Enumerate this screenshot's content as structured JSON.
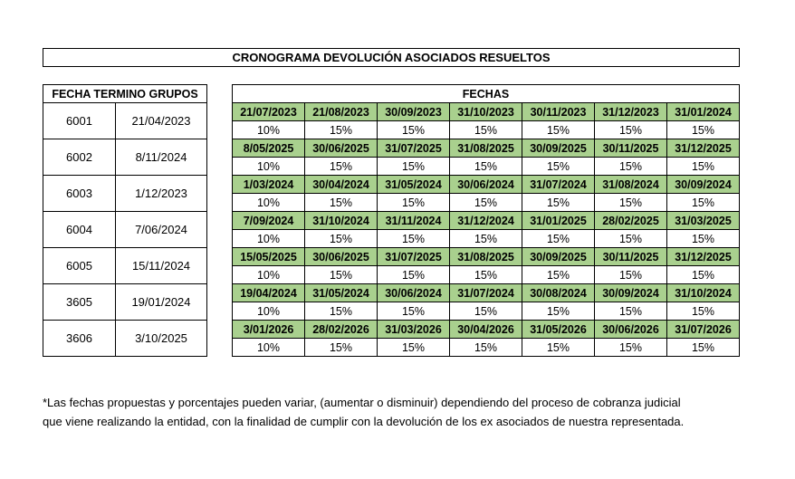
{
  "title": "CRONOGRAMA DEVOLUCIÓN ASOCIADOS RESUELTOS",
  "groups_header": "FECHA TERMINO GRUPOS",
  "fechas_header": "FECHAS",
  "groups": [
    {
      "id": "6001",
      "end_date": "21/04/2023"
    },
    {
      "id": "6002",
      "end_date": "8/11/2024"
    },
    {
      "id": "6003",
      "end_date": "1/12/2023"
    },
    {
      "id": "6004",
      "end_date": "7/06/2024"
    },
    {
      "id": "6005",
      "end_date": "15/11/2024"
    },
    {
      "id": "3605",
      "end_date": "19/01/2024"
    },
    {
      "id": "3606",
      "end_date": "3/10/2025"
    }
  ],
  "schedule": [
    {
      "dates": [
        "21/07/2023",
        "21/08/2023",
        "30/09/2023",
        "31/10/2023",
        "30/11/2023",
        "31/12/2023",
        "31/01/2024"
      ],
      "percents": [
        "10%",
        "15%",
        "15%",
        "15%",
        "15%",
        "15%",
        "15%"
      ]
    },
    {
      "dates": [
        "8/05/2025",
        "30/06/2025",
        "31/07/2025",
        "31/08/2025",
        "30/09/2025",
        "30/11/2025",
        "31/12/2025"
      ],
      "percents": [
        "10%",
        "15%",
        "15%",
        "15%",
        "15%",
        "15%",
        "15%"
      ]
    },
    {
      "dates": [
        "1/03/2024",
        "30/04/2024",
        "31/05/2024",
        "30/06/2024",
        "31/07/2024",
        "31/08/2024",
        "30/09/2024"
      ],
      "percents": [
        "10%",
        "15%",
        "15%",
        "15%",
        "15%",
        "15%",
        "15%"
      ]
    },
    {
      "dates": [
        "7/09/2024",
        "31/10/2024",
        "31/11/2024",
        "31/12/2024",
        "31/01/2025",
        "28/02/2025",
        "31/03/2025"
      ],
      "percents": [
        "10%",
        "15%",
        "15%",
        "15%",
        "15%",
        "15%",
        "15%"
      ]
    },
    {
      "dates": [
        "15/05/2025",
        "30/06/2025",
        "31/07/2025",
        "31/08/2025",
        "30/09/2025",
        "30/11/2025",
        "31/12/2025"
      ],
      "percents": [
        "10%",
        "15%",
        "15%",
        "15%",
        "15%",
        "15%",
        "15%"
      ]
    },
    {
      "dates": [
        "19/04/2024",
        "31/05/2024",
        "30/06/2024",
        "31/07/2024",
        "30/08/2024",
        "30/09/2024",
        "31/10/2024"
      ],
      "percents": [
        "10%",
        "15%",
        "15%",
        "15%",
        "15%",
        "15%",
        "15%"
      ]
    },
    {
      "dates": [
        "3/01/2026",
        "28/02/2026",
        "31/03/2026",
        "30/04/2026",
        "31/05/2026",
        "30/06/2026",
        "31/07/2026"
      ],
      "percents": [
        "10%",
        "15%",
        "15%",
        "15%",
        "15%",
        "15%",
        "15%"
      ]
    }
  ],
  "note_line1": "*Las fechas propuestas y porcentajes  pueden variar, (aumentar o disminuir)  dependiendo del proceso de cobranza judicial",
  "note_line2": "que viene realizando la entidad, con la finalidad  de cumplir con la devolución de los ex asociados de nuestra representada.",
  "colors": {
    "date_cell_bg": "#a9d08e"
  }
}
